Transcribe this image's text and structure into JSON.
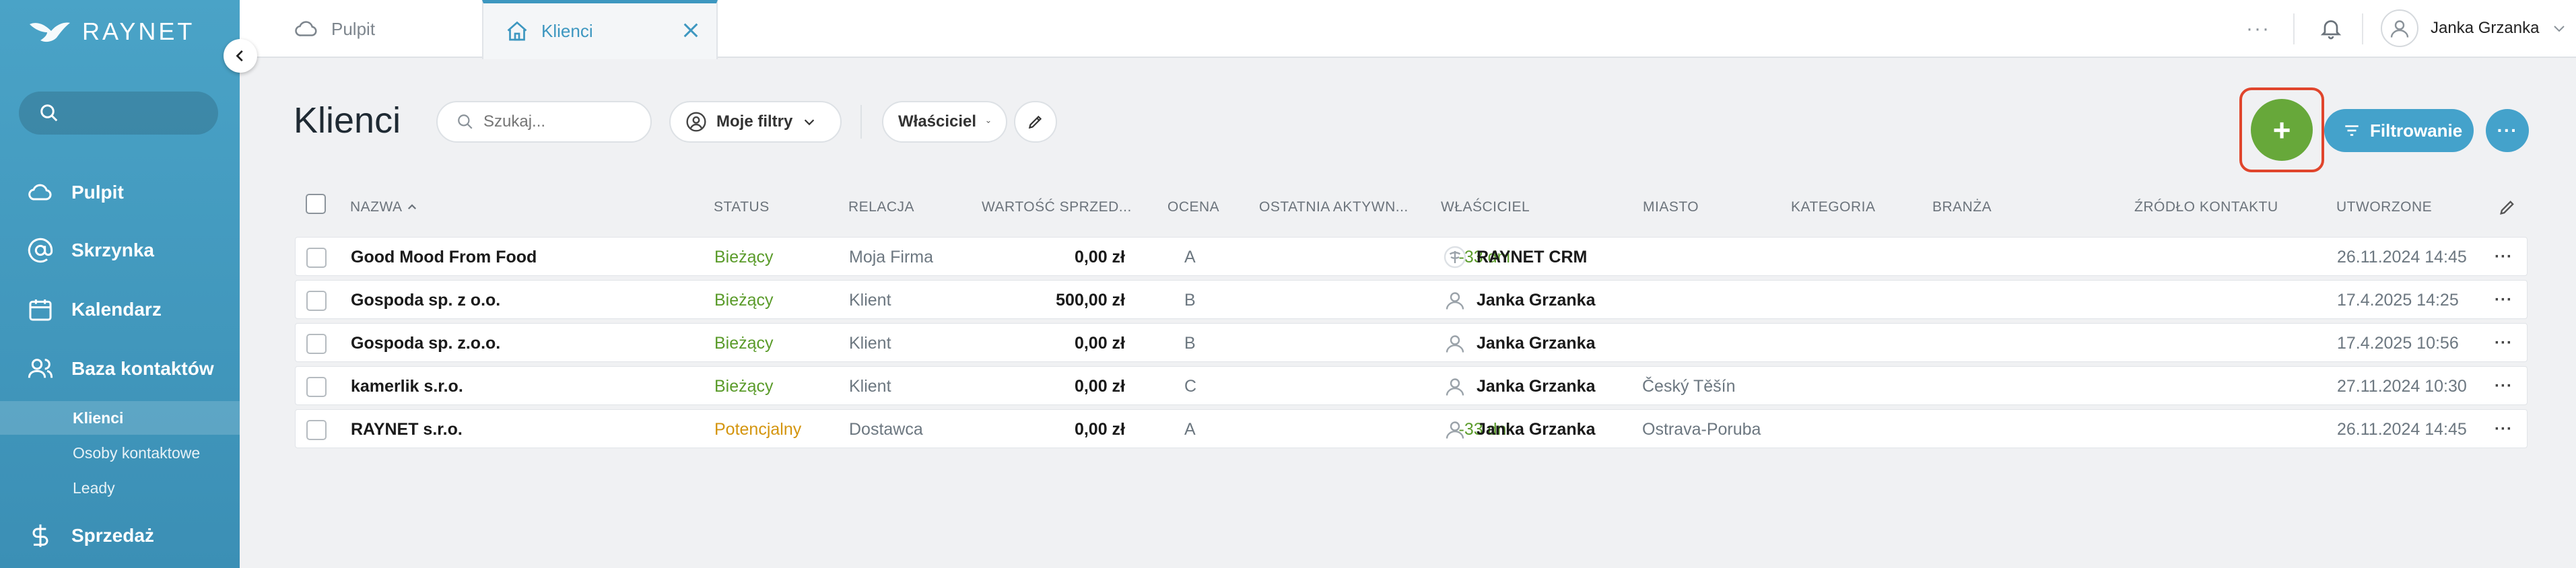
{
  "brand": {
    "name": "RAYNET"
  },
  "sidebar": {
    "search_placeholder": "",
    "items": [
      {
        "label": "Pulpit",
        "icon": "cloud-icon"
      },
      {
        "label": "Skrzynka",
        "icon": "at-icon"
      },
      {
        "label": "Kalendarz",
        "icon": "calendar-icon"
      },
      {
        "label": "Baza kontaktów",
        "icon": "users-icon"
      },
      {
        "label": "Sprzedaż",
        "icon": "dollar-icon"
      }
    ],
    "subitems": [
      {
        "label": "Klienci",
        "active": true
      },
      {
        "label": "Osoby kontaktowe",
        "active": false
      },
      {
        "label": "Leady",
        "active": false
      }
    ]
  },
  "tabs": [
    {
      "label": "Pulpit",
      "icon": "cloud-icon",
      "active": false
    },
    {
      "label": "Klienci",
      "icon": "home-icon",
      "active": true
    }
  ],
  "user": {
    "name": "Janka Grzanka"
  },
  "page": {
    "title": "Klienci",
    "search_placeholder": "Szukaj...",
    "filters_label": "Moje filtry",
    "owner_label": "Właściciel",
    "add_label": "+",
    "filter_button_label": "Filtrowanie",
    "more_label": "···"
  },
  "table": {
    "headers": {
      "name": "NAZWA",
      "status": "STATUS",
      "relation": "RELACJA",
      "value": "WARTOŚĆ SPRZED...",
      "grade": "OCENA",
      "activity": "OSTATNIA AKTYWN...",
      "owner": "WŁAŚCICIEL",
      "city": "MIASTO",
      "category": "KATEGORIA",
      "industry": "BRANŻA",
      "source": "ŹRÓDŁO KONTAKTU",
      "created": "UTWORZONE"
    },
    "rows": [
      {
        "name": "Good Mood From Food",
        "status": "Bieżący",
        "relation": "Moja Firma",
        "value": "0,00 zł",
        "grade": "A",
        "activity": "-33 dni",
        "owner": "RAYNET CRM",
        "city": "",
        "created": "26.11.2024 14:45"
      },
      {
        "name": "Gospoda sp. z o.o.",
        "status": "Bieżący",
        "relation": "Klient",
        "value": "500,00 zł",
        "grade": "B",
        "activity": "",
        "owner": "Janka Grzanka",
        "city": "",
        "created": "17.4.2025 14:25"
      },
      {
        "name": "Gospoda sp. z.o.o.",
        "status": "Bieżący",
        "relation": "Klient",
        "value": "0,00 zł",
        "grade": "B",
        "activity": "",
        "owner": "Janka Grzanka",
        "city": "",
        "created": "17.4.2025 10:56"
      },
      {
        "name": "kamerlik s.r.o.",
        "status": "Bieżący",
        "relation": "Klient",
        "value": "0,00 zł",
        "grade": "C",
        "activity": "",
        "owner": "Janka Grzanka",
        "city": "Český Těšín",
        "created": "27.11.2024 10:30"
      },
      {
        "name": "RAYNET s.r.o.",
        "status": "Potencjalny",
        "relation": "Dostawca",
        "value": "0,00 zł",
        "grade": "A",
        "activity": "-33 dni",
        "owner": "Janka Grzanka",
        "city": "Ostrava-Poruba",
        "created": "26.11.2024 14:45"
      }
    ],
    "row_menu": "···"
  },
  "colors": {
    "sidebar": "#4aa3c7",
    "accent": "#44a2cb",
    "add_button": "#67a83a",
    "status_current": "#5a9b2a",
    "status_potential": "#d4950f",
    "highlight": "#e0452c"
  }
}
